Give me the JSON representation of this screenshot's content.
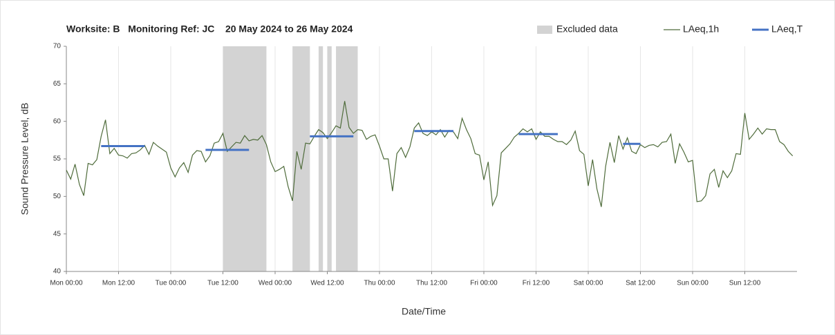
{
  "chart_data": {
    "type": "line",
    "title": "Worksite: B   Monitoring Ref: JC    20 May 2024 to 26 May 2024",
    "x_label": "Date/Time",
    "y_label": "Sound Pressure Level, dB",
    "xlim": [
      0,
      168
    ],
    "xticks": [
      {
        "value": 0,
        "label": "Mon 00:00"
      },
      {
        "value": 12,
        "label": "Mon 12:00"
      },
      {
        "value": 24,
        "label": "Tue 00:00"
      },
      {
        "value": 36,
        "label": "Tue 12:00"
      },
      {
        "value": 48,
        "label": "Wed 00:00"
      },
      {
        "value": 60,
        "label": "Wed 12:00"
      },
      {
        "value": 72,
        "label": "Thu 00:00"
      },
      {
        "value": 84,
        "label": "Thu 12:00"
      },
      {
        "value": 96,
        "label": "Fri 00:00"
      },
      {
        "value": 108,
        "label": "Fri 12:00"
      },
      {
        "value": 120,
        "label": "Sat 00:00"
      },
      {
        "value": 132,
        "label": "Sat 12:00"
      },
      {
        "value": 144,
        "label": "Sun 00:00"
      },
      {
        "value": 156,
        "label": "Sun 12:00"
      }
    ],
    "ylim": [
      40,
      70
    ],
    "yticks": [
      40,
      45,
      50,
      55,
      60,
      65,
      70
    ],
    "grid": true,
    "legend": "top-right",
    "excluded": {
      "name": "Excluded data",
      "color": "#d3d3d3",
      "ranges": [
        [
          36,
          46
        ],
        [
          52,
          56
        ],
        [
          58,
          59
        ],
        [
          60,
          61
        ],
        [
          62,
          67
        ]
      ]
    },
    "series": [
      {
        "name": "LAeq,1h",
        "color": "#4e6b3a",
        "x": [
          0,
          1,
          2,
          3,
          4,
          5,
          6,
          7,
          8,
          9,
          10,
          11,
          12,
          13,
          14,
          15,
          16,
          17,
          18,
          19,
          20,
          21,
          22,
          23,
          24,
          25,
          26,
          27,
          28,
          29,
          30,
          31,
          32,
          33,
          34,
          35,
          36,
          37,
          38,
          39,
          40,
          41,
          42,
          43,
          44,
          45,
          46,
          47,
          48,
          49,
          50,
          51,
          52,
          53,
          54,
          55,
          56,
          57,
          58,
          59,
          60,
          61,
          62,
          63,
          64,
          65,
          66,
          67,
          68,
          69,
          70,
          71,
          72,
          73,
          74,
          75,
          76,
          77,
          78,
          79,
          80,
          81,
          82,
          83,
          84,
          85,
          86,
          87,
          88,
          89,
          90,
          91,
          92,
          93,
          94,
          95,
          96,
          97,
          98,
          99,
          100,
          101,
          102,
          103,
          104,
          105,
          106,
          107,
          108,
          109,
          110,
          111,
          112,
          113,
          114,
          115,
          116,
          117,
          118,
          119,
          120,
          121,
          122,
          123,
          124,
          125,
          126,
          127,
          128,
          129,
          130,
          131,
          132,
          133,
          134,
          135,
          136,
          137,
          138,
          139,
          140,
          141,
          142,
          143,
          144,
          145,
          146,
          147,
          148,
          149,
          150,
          151,
          152,
          153,
          154,
          155,
          156,
          157,
          158,
          159,
          160,
          161,
          162,
          163,
          164,
          165,
          166,
          167
        ],
        "values": [
          53.5,
          52.3,
          54.3,
          51.6,
          50.1,
          54.4,
          54.2,
          54.9,
          58.0,
          60.2,
          55.7,
          56.4,
          55.5,
          55.4,
          55.1,
          55.7,
          55.8,
          56.2,
          56.8,
          55.6,
          57.2,
          56.7,
          56.3,
          55.9,
          53.8,
          52.6,
          53.8,
          54.5,
          53.2,
          55.5,
          56.1,
          56.0,
          54.6,
          55.4,
          57.1,
          57.3,
          58.4,
          56.0,
          56.6,
          57.2,
          57.1,
          58.1,
          57.4,
          57.6,
          57.5,
          58.1,
          56.9,
          54.6,
          53.3,
          53.6,
          54.0,
          51.3,
          49.4,
          56.0,
          53.6,
          57.1,
          57.0,
          58.0,
          58.9,
          58.5,
          57.7,
          58.5,
          59.4,
          59.1,
          62.7,
          59.2,
          58.4,
          58.9,
          58.8,
          57.6,
          58.0,
          58.2,
          56.7,
          55.0,
          55.0,
          50.7,
          55.7,
          56.5,
          55.2,
          56.6,
          59.1,
          59.8,
          58.4,
          58.1,
          58.6,
          58.2,
          58.9,
          57.9,
          58.8,
          58.6,
          57.7,
          60.4,
          58.9,
          57.7,
          55.7,
          55.5,
          52.2,
          54.6,
          48.8,
          50.1,
          55.8,
          56.4,
          57.0,
          57.9,
          58.4,
          59.0,
          58.6,
          59.0,
          57.6,
          58.6,
          58.0,
          58.0,
          57.6,
          57.3,
          57.3,
          56.9,
          57.5,
          58.7,
          56.1,
          55.6,
          51.4,
          54.9,
          51.0,
          48.6,
          54.0,
          57.2,
          54.5,
          58.1,
          56.3,
          57.8,
          56.0,
          55.7,
          56.9,
          56.5,
          56.8,
          56.9,
          56.6,
          57.2,
          57.3,
          58.3,
          54.4,
          57.0,
          55.9,
          54.6,
          54.8,
          49.3,
          49.4,
          50.1,
          53.0,
          53.6,
          51.2,
          53.4,
          52.5,
          53.4,
          55.7,
          55.6,
          61.1,
          57.6,
          58.3,
          59.1,
          58.3,
          59.0,
          58.9,
          58.9,
          57.3,
          56.9,
          56.0,
          55.4
        ]
      },
      {
        "name": "LAeq,T",
        "color": "#4472c4",
        "segments": [
          {
            "x": [
              8,
              18
            ],
            "value": 56.7
          },
          {
            "x": [
              32,
              42
            ],
            "value": 56.2
          },
          {
            "x": [
              56,
              66
            ],
            "value": 58.0
          },
          {
            "x": [
              80,
              89
            ],
            "value": 58.7
          },
          {
            "x": [
              104,
              113
            ],
            "value": 58.3
          },
          {
            "x": [
              128,
              132
            ],
            "value": 57.0
          }
        ]
      }
    ]
  }
}
